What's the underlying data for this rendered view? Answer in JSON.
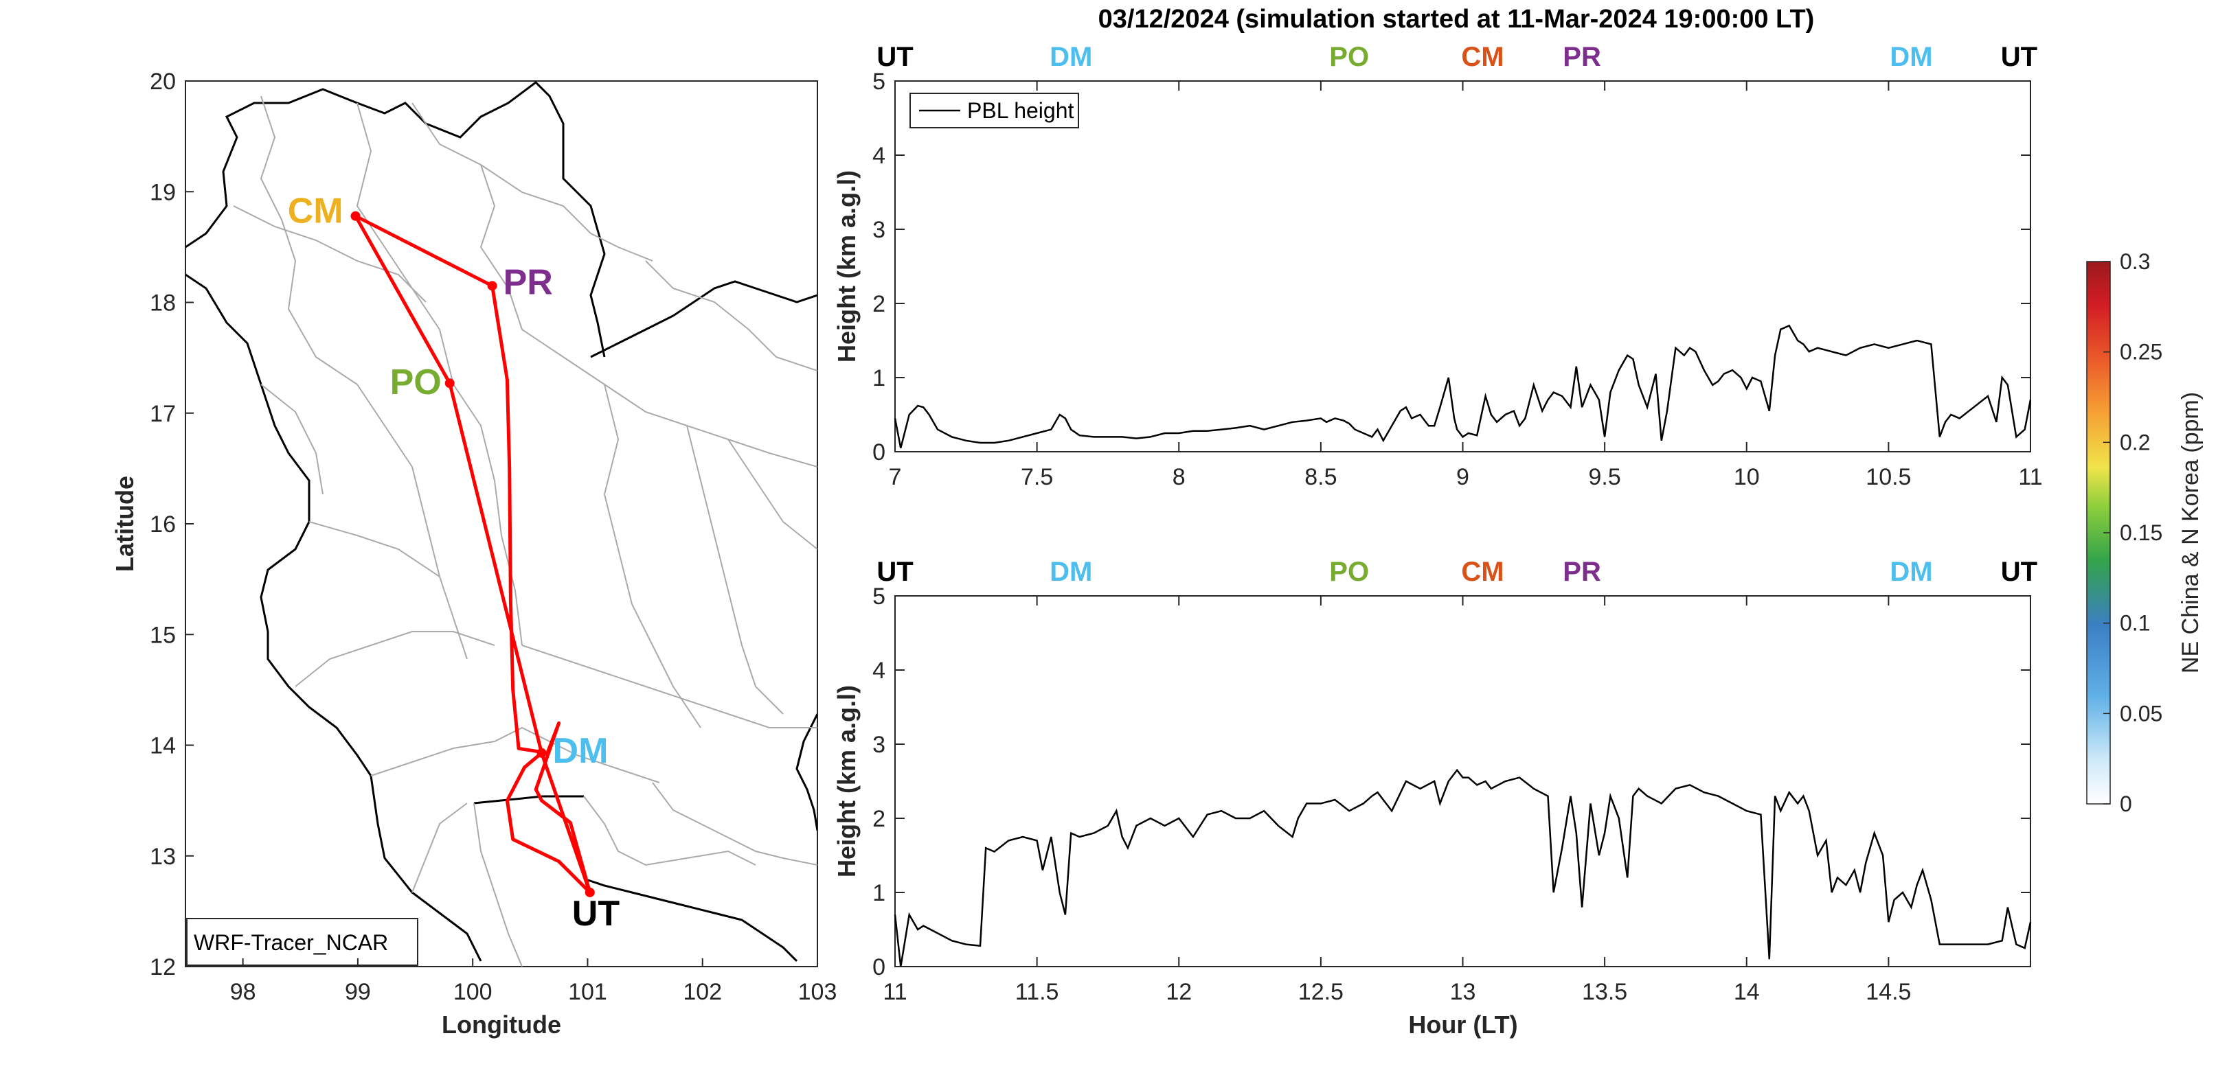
{
  "figure": {
    "title": "03/12/2024 (simulation started at 11-Mar-2024 19:00:00 LT)",
    "colors": {
      "CM": "#EDB120",
      "PR": "#7E2F8E",
      "PO": "#77AC30",
      "DM": "#4DBEEE",
      "UT": "#000000",
      "CM_top": "#D95319",
      "route": "#FF0000"
    }
  },
  "map": {
    "xlabel": "Longitude",
    "ylabel": "Latitude",
    "xticks": [
      "98",
      "99",
      "100",
      "101",
      "102",
      "103"
    ],
    "yticks": [
      "12",
      "13",
      "14",
      "15",
      "16",
      "17",
      "18",
      "19",
      "20"
    ],
    "xlim": [
      97.5,
      103
    ],
    "ylim": [
      12,
      20
    ],
    "model_label": "WRF-Tracer_NCAR",
    "sites": [
      {
        "code": "CM",
        "lon": 98.98,
        "lat": 18.78
      },
      {
        "code": "PR",
        "lon": 100.17,
        "lat": 18.15
      },
      {
        "code": "PO",
        "lon": 99.8,
        "lat": 17.27
      },
      {
        "code": "DM",
        "lon": 100.6,
        "lat": 13.93
      },
      {
        "code": "UT",
        "lon": 101.02,
        "lat": 12.67
      }
    ],
    "route": [
      [
        101.02,
        12.67
      ],
      [
        100.6,
        13.93
      ],
      [
        99.8,
        17.27
      ],
      [
        98.98,
        18.78
      ],
      [
        100.17,
        18.15
      ],
      [
        100.3,
        17.3
      ],
      [
        100.32,
        16.5
      ],
      [
        100.33,
        15.3
      ],
      [
        100.35,
        14.5
      ],
      [
        100.4,
        13.97
      ],
      [
        100.65,
        13.93
      ],
      [
        100.75,
        14.2
      ],
      [
        100.55,
        13.6
      ],
      [
        100.6,
        13.5
      ],
      [
        100.85,
        13.3
      ],
      [
        101.02,
        12.67
      ],
      [
        100.75,
        12.95
      ],
      [
        100.35,
        13.15
      ],
      [
        100.3,
        13.5
      ],
      [
        100.45,
        13.8
      ],
      [
        100.6,
        13.93
      ]
    ]
  },
  "panels": [
    {
      "ylabel": "Height (km a.g.l)",
      "xticks": [
        "7",
        "7.5",
        "8",
        "8.5",
        "9",
        "9.5",
        "10",
        "10.5",
        "11"
      ],
      "yticks": [
        "0",
        "1",
        "2",
        "3",
        "4",
        "5"
      ],
      "top_labels": [
        {
          "text": "UT",
          "x": 7.0,
          "color_key": "UT"
        },
        {
          "text": "DM",
          "x": 7.62,
          "color_key": "DM"
        },
        {
          "text": "PO",
          "x": 8.6,
          "color_key": "PO"
        },
        {
          "text": "CM",
          "x": 9.07,
          "color_key": "CM_top"
        },
        {
          "text": "PR",
          "x": 9.42,
          "color_key": "PR"
        },
        {
          "text": "DM",
          "x": 10.58,
          "color_key": "DM"
        },
        {
          "text": "UT",
          "x": 10.96,
          "color_key": "UT"
        }
      ],
      "legend": "PBL height"
    },
    {
      "ylabel": "Height (km a.g.l)",
      "xlabel": "Hour (LT)",
      "xticks": [
        "11",
        "11.5",
        "12",
        "12.5",
        "13",
        "13.5",
        "14",
        "14.5"
      ],
      "yticks": [
        "0",
        "1",
        "2",
        "3",
        "4",
        "5"
      ],
      "top_labels": [
        {
          "text": "UT",
          "x": 11.0,
          "color_key": "UT"
        },
        {
          "text": "DM",
          "x": 11.62,
          "color_key": "DM"
        },
        {
          "text": "PO",
          "x": 12.6,
          "color_key": "PO"
        },
        {
          "text": "CM",
          "x": 13.07,
          "color_key": "CM_top"
        },
        {
          "text": "PR",
          "x": 13.42,
          "color_key": "PR"
        },
        {
          "text": "DM",
          "x": 14.58,
          "color_key": "DM"
        },
        {
          "text": "UT",
          "x": 14.96,
          "color_key": "UT"
        }
      ]
    }
  ],
  "colorbar": {
    "label": "NE China & N Korea (ppm)",
    "ticks": [
      "0",
      "0.05",
      "0.1",
      "0.15",
      "0.2",
      "0.25",
      "0.3"
    ]
  },
  "chart_data": [
    {
      "type": "line",
      "xlim": [
        7,
        11
      ],
      "ylim": [
        0,
        5
      ],
      "legend_placement": "top-left",
      "series": [
        {
          "name": "PBL height",
          "x": [
            7.0,
            7.02,
            7.05,
            7.08,
            7.1,
            7.12,
            7.15,
            7.2,
            7.25,
            7.3,
            7.35,
            7.4,
            7.45,
            7.5,
            7.55,
            7.58,
            7.6,
            7.62,
            7.65,
            7.7,
            7.75,
            7.8,
            7.85,
            7.9,
            7.95,
            8.0,
            8.05,
            8.1,
            8.15,
            8.2,
            8.25,
            8.3,
            8.35,
            8.4,
            8.45,
            8.5,
            8.52,
            8.55,
            8.58,
            8.6,
            8.62,
            8.65,
            8.68,
            8.7,
            8.72,
            8.75,
            8.78,
            8.8,
            8.82,
            8.85,
            8.88,
            8.9,
            8.92,
            8.95,
            8.97,
            8.98,
            9.0,
            9.02,
            9.05,
            9.08,
            9.1,
            9.12,
            9.15,
            9.18,
            9.2,
            9.22,
            9.25,
            9.28,
            9.3,
            9.32,
            9.35,
            9.38,
            9.4,
            9.42,
            9.45,
            9.48,
            9.5,
            9.52,
            9.55,
            9.58,
            9.6,
            9.62,
            9.65,
            9.68,
            9.7,
            9.72,
            9.75,
            9.78,
            9.8,
            9.82,
            9.85,
            9.88,
            9.9,
            9.92,
            9.95,
            9.98,
            10.0,
            10.02,
            10.05,
            10.08,
            10.1,
            10.12,
            10.15,
            10.18,
            10.2,
            10.22,
            10.25,
            10.3,
            10.35,
            10.4,
            10.45,
            10.5,
            10.55,
            10.6,
            10.65,
            10.68,
            10.7,
            10.72,
            10.75,
            10.8,
            10.85,
            10.88,
            10.9,
            10.92,
            10.95,
            10.98,
            11.0
          ],
          "values": [
            0.45,
            0.05,
            0.5,
            0.62,
            0.6,
            0.5,
            0.3,
            0.2,
            0.15,
            0.12,
            0.12,
            0.15,
            0.2,
            0.25,
            0.3,
            0.5,
            0.45,
            0.3,
            0.22,
            0.2,
            0.2,
            0.2,
            0.18,
            0.2,
            0.25,
            0.25,
            0.28,
            0.28,
            0.3,
            0.32,
            0.35,
            0.3,
            0.35,
            0.4,
            0.42,
            0.45,
            0.4,
            0.45,
            0.42,
            0.38,
            0.3,
            0.25,
            0.2,
            0.3,
            0.15,
            0.35,
            0.55,
            0.6,
            0.45,
            0.5,
            0.35,
            0.35,
            0.6,
            1.0,
            0.45,
            0.3,
            0.2,
            0.25,
            0.22,
            0.75,
            0.5,
            0.4,
            0.5,
            0.55,
            0.35,
            0.45,
            0.9,
            0.55,
            0.7,
            0.8,
            0.75,
            0.6,
            1.15,
            0.6,
            0.9,
            0.7,
            0.2,
            0.8,
            1.1,
            1.3,
            1.25,
            0.9,
            0.6,
            1.05,
            0.15,
            0.55,
            1.4,
            1.3,
            1.4,
            1.35,
            1.1,
            0.9,
            0.95,
            1.05,
            1.1,
            1.0,
            0.85,
            1.0,
            0.95,
            0.55,
            1.3,
            1.65,
            1.7,
            1.5,
            1.45,
            1.35,
            1.4,
            1.35,
            1.3,
            1.4,
            1.45,
            1.4,
            1.45,
            1.5,
            1.45,
            0.2,
            0.4,
            0.5,
            0.45,
            0.6,
            0.75,
            0.4,
            1.0,
            0.9,
            0.2,
            0.3,
            0.7
          ]
        }
      ]
    },
    {
      "type": "line",
      "xlim": [
        11,
        15
      ],
      "ylim": [
        0,
        5
      ],
      "series": [
        {
          "x": [
            11.0,
            11.02,
            11.05,
            11.08,
            11.1,
            11.15,
            11.2,
            11.25,
            11.3,
            11.32,
            11.35,
            11.4,
            11.45,
            11.5,
            11.52,
            11.55,
            11.58,
            11.6,
            11.62,
            11.65,
            11.7,
            11.75,
            11.78,
            11.8,
            11.82,
            11.85,
            11.9,
            11.95,
            12.0,
            12.05,
            12.1,
            12.15,
            12.2,
            12.25,
            12.3,
            12.35,
            12.4,
            12.42,
            12.45,
            12.5,
            12.55,
            12.6,
            12.65,
            12.68,
            12.7,
            12.75,
            12.8,
            12.85,
            12.9,
            12.92,
            12.95,
            12.98,
            13.0,
            13.02,
            13.05,
            13.08,
            13.1,
            13.15,
            13.2,
            13.25,
            13.3,
            13.32,
            13.35,
            13.38,
            13.4,
            13.42,
            13.45,
            13.48,
            13.5,
            13.52,
            13.55,
            13.58,
            13.6,
            13.62,
            13.65,
            13.7,
            13.75,
            13.8,
            13.85,
            13.9,
            13.95,
            14.0,
            14.05,
            14.08,
            14.1,
            14.12,
            14.15,
            14.18,
            14.2,
            14.22,
            14.25,
            14.28,
            14.3,
            14.32,
            14.35,
            14.38,
            14.4,
            14.42,
            14.45,
            14.48,
            14.5,
            14.52,
            14.55,
            14.58,
            14.6,
            14.62,
            14.65,
            14.68,
            14.7,
            14.75,
            14.8,
            14.85,
            14.9,
            14.92,
            14.95,
            14.98,
            15.0
          ],
          "values": [
            0.7,
            0.0,
            0.7,
            0.5,
            0.55,
            0.45,
            0.35,
            0.3,
            0.28,
            1.6,
            1.55,
            1.7,
            1.75,
            1.7,
            1.3,
            1.75,
            1.0,
            0.7,
            1.8,
            1.75,
            1.8,
            1.9,
            2.1,
            1.75,
            1.6,
            1.9,
            2.0,
            1.9,
            2.0,
            1.75,
            2.05,
            2.1,
            2.0,
            2.0,
            2.1,
            1.9,
            1.75,
            2.0,
            2.2,
            2.2,
            2.25,
            2.1,
            2.2,
            2.3,
            2.35,
            2.1,
            2.5,
            2.4,
            2.5,
            2.2,
            2.5,
            2.65,
            2.55,
            2.55,
            2.45,
            2.5,
            2.4,
            2.5,
            2.55,
            2.4,
            2.3,
            1.0,
            1.6,
            2.3,
            1.8,
            0.8,
            2.2,
            1.5,
            1.8,
            2.3,
            2.0,
            1.2,
            2.3,
            2.4,
            2.3,
            2.2,
            2.4,
            2.45,
            2.35,
            2.3,
            2.2,
            2.1,
            2.05,
            0.1,
            2.3,
            2.1,
            2.35,
            2.2,
            2.3,
            2.1,
            1.5,
            1.7,
            1.0,
            1.2,
            1.1,
            1.3,
            1.0,
            1.4,
            1.8,
            1.5,
            0.6,
            0.9,
            1.0,
            0.8,
            1.1,
            1.3,
            0.9,
            0.3,
            0.3,
            0.3,
            0.3,
            0.3,
            0.35,
            0.8,
            0.3,
            0.25,
            0.6
          ]
        }
      ]
    },
    {
      "type": "map",
      "xlabel": "Longitude",
      "ylabel": "Latitude",
      "xlim": [
        97.5,
        103
      ],
      "ylim": [
        12,
        20
      ]
    }
  ]
}
